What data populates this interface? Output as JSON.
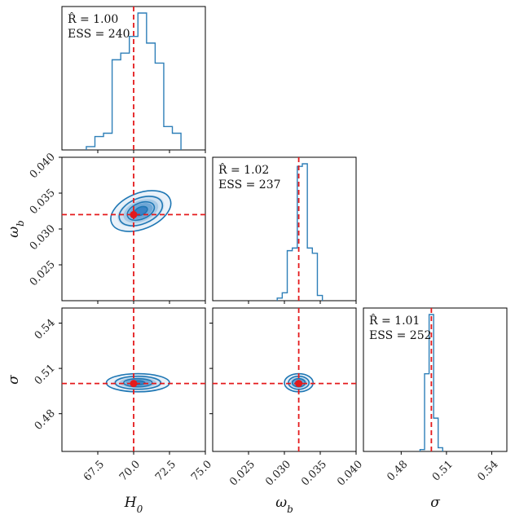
{
  "chart_data": {
    "type": "corner",
    "parameters": [
      {
        "key": "H0",
        "label": "H_0",
        "truth": 70.0,
        "range": [
          65.0,
          75.0
        ],
        "ticks": [
          67.5,
          70.0,
          72.5,
          75.0
        ],
        "tick_labels": [
          "67.5",
          "70.0",
          "72.5",
          "75.0"
        ]
      },
      {
        "key": "omega_b",
        "label": "ω_b",
        "truth": 0.032,
        "range": [
          0.02,
          0.04
        ],
        "ticks": [
          0.025,
          0.03,
          0.035,
          0.04
        ],
        "tick_labels": [
          "0.025",
          "0.030",
          "0.035",
          "0.040"
        ]
      },
      {
        "key": "sigma",
        "label": "σ",
        "truth": 0.5,
        "range": [
          0.455,
          0.55
        ],
        "ticks": [
          0.48,
          0.51,
          0.54
        ],
        "tick_labels": [
          "0.48",
          "0.51",
          "0.54"
        ]
      }
    ],
    "diagonal": [
      {
        "param": "H0",
        "rhat_text": "R̂ = 1.00",
        "ess_text": "ESS = 240",
        "bin_edges": [
          66.7,
          67.3,
          67.9,
          68.5,
          69.1,
          69.7,
          70.3,
          70.9,
          71.5,
          72.1,
          72.7,
          73.3
        ],
        "counts": [
          1,
          4,
          5,
          27,
          29,
          34,
          41,
          32,
          26,
          7,
          5
        ]
      },
      {
        "param": "omega_b",
        "rhat_text": "R̂ = 1.02",
        "ess_text": "ESS = 237",
        "bin_edges": [
          0.029,
          0.0297,
          0.0304,
          0.0311,
          0.0318,
          0.0325,
          0.0332,
          0.0339,
          0.0346,
          0.0353
        ],
        "counts": [
          1,
          3,
          19,
          20,
          51,
          52,
          20,
          18,
          2
        ]
      },
      {
        "param": "sigma",
        "rhat_text": "R̂ = 1.01",
        "ess_text": "ESS = 252",
        "bin_edges": [
          0.4925,
          0.4955,
          0.4985,
          0.5015,
          0.5045,
          0.5075
        ],
        "counts": [
          1,
          42,
          74,
          18,
          2
        ]
      }
    ],
    "pairs": [
      {
        "x": "H0",
        "y": "omega_b",
        "center": [
          70.5,
          0.0325
        ],
        "half_widths": [
          2.2,
          0.0025
        ],
        "tilt_deg": 22
      },
      {
        "x": "H0",
        "y": "sigma",
        "center": [
          70.3,
          0.5005
        ],
        "half_widths": [
          2.2,
          0.006
        ],
        "tilt_deg": 0
      },
      {
        "x": "omega_b",
        "y": "sigma",
        "center": [
          0.032,
          0.5005
        ],
        "half_widths": [
          0.002,
          0.006
        ],
        "tilt_deg": 0
      }
    ],
    "colors": {
      "hist": "#2e7fb8",
      "contour": "#1f77b4",
      "truth": "#e41a1c"
    }
  }
}
